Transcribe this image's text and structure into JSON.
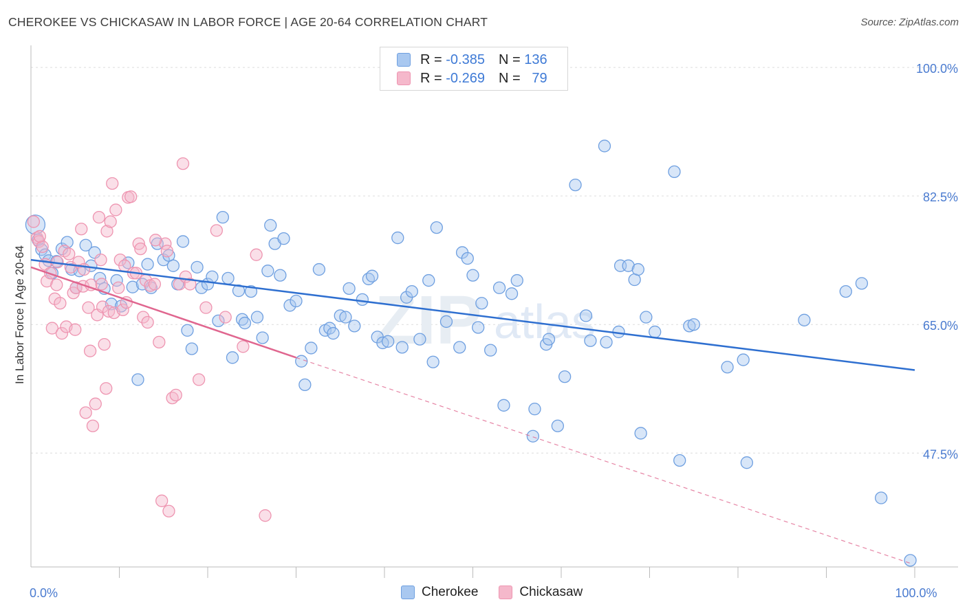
{
  "header": {
    "title": "CHEROKEE VS CHICKASAW IN LABOR FORCE | AGE 20-64 CORRELATION CHART",
    "source": "Source: ZipAtlas.com"
  },
  "legend": {
    "rows": [
      {
        "r_label": "R =",
        "r_value": "-0.385",
        "n_label": "N =",
        "n_value": "136",
        "color": "#a9c8f0"
      },
      {
        "r_label": "R =",
        "r_value": "-0.269",
        "n_label": "N =",
        "n_value": "79",
        "color": "#f5b8cb"
      }
    ]
  },
  "bottom_legend": {
    "items": [
      {
        "label": "Cherokee",
        "color": "#a9c8f0"
      },
      {
        "label": "Chickasaw",
        "color": "#f5b8cb"
      }
    ]
  },
  "watermark": {
    "zip": "ZIP",
    "atlas": "atlas"
  },
  "chart_data": {
    "type": "scatter",
    "ylabel": "In Labor Force | Age 20-64",
    "xlabel": "",
    "xlim": [
      0,
      100
    ],
    "ylim": [
      32,
      103
    ],
    "x_tick_labels": [
      "0.0%",
      "100.0%"
    ],
    "y_ticks": [
      47.5,
      65.0,
      82.5,
      100.0
    ],
    "y_tick_labels": [
      "47.5%",
      "65.0%",
      "82.5%",
      "100.0%"
    ],
    "grid": true,
    "series": [
      {
        "name": "Cherokee",
        "color": "#6e9fe0",
        "fill": "#a9c8f0",
        "trend": {
          "x0": 0,
          "y0": 73.8,
          "x1": 100,
          "y1": 58.8,
          "color": "#2e6fd0"
        },
        "points": [
          [
            0.5,
            78.6
          ],
          [
            0.8,
            76.5
          ],
          [
            1.2,
            75.2
          ],
          [
            1.6,
            74.5
          ],
          [
            2.0,
            73.7
          ],
          [
            2.4,
            72.0
          ],
          [
            2.9,
            73.6
          ],
          [
            3.5,
            75.3
          ],
          [
            4.1,
            76.2
          ],
          [
            4.6,
            72.5
          ],
          [
            5.1,
            70.0
          ],
          [
            5.5,
            72.3
          ],
          [
            6.2,
            75.8
          ],
          [
            6.8,
            73.0
          ],
          [
            7.2,
            74.8
          ],
          [
            7.8,
            71.3
          ],
          [
            8.3,
            69.9
          ],
          [
            9.1,
            67.8
          ],
          [
            9.7,
            71.0
          ],
          [
            10.2,
            67.5
          ],
          [
            11.0,
            73.4
          ],
          [
            11.5,
            70.1
          ],
          [
            12.1,
            57.5
          ],
          [
            12.6,
            70.5
          ],
          [
            13.2,
            73.2
          ],
          [
            13.6,
            70.0
          ],
          [
            14.3,
            76.0
          ],
          [
            15.0,
            73.8
          ],
          [
            15.6,
            74.4
          ],
          [
            16.1,
            73.0
          ],
          [
            16.6,
            70.5
          ],
          [
            17.2,
            76.3
          ],
          [
            17.7,
            64.2
          ],
          [
            18.2,
            61.7
          ],
          [
            18.8,
            72.8
          ],
          [
            19.3,
            70.0
          ],
          [
            20.0,
            70.5
          ],
          [
            20.5,
            71.5
          ],
          [
            21.2,
            65.5
          ],
          [
            21.7,
            79.6
          ],
          [
            22.3,
            71.3
          ],
          [
            22.8,
            60.5
          ],
          [
            23.5,
            69.6
          ],
          [
            23.9,
            65.7
          ],
          [
            24.2,
            65.2
          ],
          [
            24.9,
            69.5
          ],
          [
            25.6,
            66.0
          ],
          [
            26.2,
            63.2
          ],
          [
            26.8,
            72.3
          ],
          [
            27.1,
            78.5
          ],
          [
            27.6,
            76.0
          ],
          [
            28.2,
            71.7
          ],
          [
            28.6,
            76.7
          ],
          [
            29.3,
            67.6
          ],
          [
            30.0,
            68.2
          ],
          [
            30.6,
            60.0
          ],
          [
            31.0,
            56.8
          ],
          [
            31.7,
            61.8
          ],
          [
            32.6,
            72.5
          ],
          [
            33.3,
            64.2
          ],
          [
            33.8,
            64.5
          ],
          [
            34.2,
            63.8
          ],
          [
            35.0,
            66.2
          ],
          [
            35.6,
            66.0
          ],
          [
            36.0,
            69.9
          ],
          [
            36.6,
            64.8
          ],
          [
            37.5,
            68.4
          ],
          [
            38.2,
            71.2
          ],
          [
            38.6,
            71.6
          ],
          [
            39.2,
            63.3
          ],
          [
            39.8,
            62.5
          ],
          [
            40.4,
            62.7
          ],
          [
            41.5,
            76.8
          ],
          [
            42.0,
            61.9
          ],
          [
            42.5,
            68.7
          ],
          [
            43.1,
            69.5
          ],
          [
            44.0,
            63.0
          ],
          [
            45.0,
            71.0
          ],
          [
            45.5,
            59.9
          ],
          [
            45.9,
            78.2
          ],
          [
            47.0,
            65.4
          ],
          [
            48.5,
            61.9
          ],
          [
            48.8,
            74.8
          ],
          [
            49.4,
            74.0
          ],
          [
            50.0,
            71.7
          ],
          [
            50.6,
            64.6
          ],
          [
            51.0,
            67.9
          ],
          [
            52.0,
            61.5
          ],
          [
            53.0,
            70.0
          ],
          [
            53.5,
            54.0
          ],
          [
            54.4,
            69.2
          ],
          [
            55.0,
            71.0
          ],
          [
            56.8,
            49.8
          ],
          [
            57.0,
            53.5
          ],
          [
            58.3,
            62.3
          ],
          [
            58.6,
            63.0
          ],
          [
            59.6,
            51.2
          ],
          [
            60.4,
            57.9
          ],
          [
            61.6,
            84.0
          ],
          [
            62.8,
            66.2
          ],
          [
            63.3,
            62.8
          ],
          [
            64.9,
            89.3
          ],
          [
            65.1,
            62.6
          ],
          [
            66.5,
            64.0
          ],
          [
            66.7,
            73.0
          ],
          [
            67.6,
            73.0
          ],
          [
            68.3,
            71.1
          ],
          [
            68.7,
            72.5
          ],
          [
            69.0,
            50.2
          ],
          [
            69.6,
            66.0
          ],
          [
            70.6,
            64.0
          ],
          [
            72.8,
            85.8
          ],
          [
            73.4,
            46.5
          ],
          [
            74.5,
            64.8
          ],
          [
            75.0,
            65.0
          ],
          [
            78.8,
            59.2
          ],
          [
            80.6,
            60.2
          ],
          [
            81.0,
            46.2
          ],
          [
            87.5,
            65.6
          ],
          [
            92.2,
            69.5
          ],
          [
            94.0,
            70.6
          ],
          [
            96.2,
            41.4
          ],
          [
            99.5,
            32.9
          ]
        ]
      },
      {
        "name": "Chickasaw",
        "color": "#ee94b0",
        "fill": "#f5b8cb",
        "trend": {
          "x0": 0,
          "y0": 72.8,
          "x1": 30,
          "y1": 60.5,
          "color": "#e0668f",
          "dash_x1": 99.5,
          "dash_y1": 32.5
        },
        "points": [
          [
            0.3,
            79.0
          ],
          [
            0.7,
            76.8
          ],
          [
            0.9,
            76.3
          ],
          [
            1.3,
            75.6
          ],
          [
            1.6,
            73.2
          ],
          [
            1.8,
            70.9
          ],
          [
            2.2,
            72.0
          ],
          [
            2.4,
            64.5
          ],
          [
            2.7,
            68.5
          ],
          [
            2.9,
            70.4
          ],
          [
            3.3,
            67.9
          ],
          [
            3.5,
            63.8
          ],
          [
            3.8,
            75.0
          ],
          [
            4.0,
            64.7
          ],
          [
            4.3,
            74.6
          ],
          [
            4.5,
            72.8
          ],
          [
            4.8,
            69.3
          ],
          [
            5.1,
            70.0
          ],
          [
            5.0,
            64.3
          ],
          [
            5.4,
            73.5
          ],
          [
            5.7,
            78.0
          ],
          [
            5.9,
            70.2
          ],
          [
            6.2,
            53.0
          ],
          [
            6.5,
            67.3
          ],
          [
            6.7,
            61.4
          ],
          [
            6.8,
            70.4
          ],
          [
            7.0,
            51.2
          ],
          [
            7.3,
            54.2
          ],
          [
            7.5,
            66.3
          ],
          [
            7.7,
            79.6
          ],
          [
            7.9,
            73.8
          ],
          [
            8.1,
            67.4
          ],
          [
            8.3,
            62.3
          ],
          [
            8.5,
            56.3
          ],
          [
            8.6,
            77.7
          ],
          [
            8.8,
            66.8
          ],
          [
            9.0,
            79.0
          ],
          [
            9.2,
            84.2
          ],
          [
            9.4,
            66.6
          ],
          [
            9.6,
            80.6
          ],
          [
            9.9,
            70.0
          ],
          [
            10.1,
            73.8
          ],
          [
            10.4,
            67.0
          ],
          [
            10.6,
            73.0
          ],
          [
            11.0,
            82.3
          ],
          [
            11.3,
            82.4
          ],
          [
            11.6,
            72.0
          ],
          [
            11.9,
            72.0
          ],
          [
            12.2,
            76.0
          ],
          [
            12.4,
            75.3
          ],
          [
            12.7,
            66.0
          ],
          [
            13.0,
            71.0
          ],
          [
            13.2,
            65.3
          ],
          [
            13.5,
            70.3
          ],
          [
            14.0,
            70.5
          ],
          [
            14.5,
            62.6
          ],
          [
            14.8,
            41.0
          ],
          [
            15.2,
            76.0
          ],
          [
            15.4,
            75.0
          ],
          [
            15.6,
            39.6
          ],
          [
            16.0,
            55.0
          ],
          [
            16.4,
            55.4
          ],
          [
            16.8,
            70.5
          ],
          [
            17.2,
            86.9
          ],
          [
            17.5,
            71.5
          ],
          [
            18.0,
            70.5
          ],
          [
            19.0,
            57.5
          ],
          [
            19.8,
            67.3
          ],
          [
            21.0,
            77.8
          ],
          [
            22.0,
            66.0
          ],
          [
            24.0,
            62.0
          ],
          [
            25.5,
            74.5
          ],
          [
            26.5,
            39.0
          ],
          [
            1.0,
            77.0
          ],
          [
            3.0,
            73.5
          ],
          [
            6.0,
            72.5
          ],
          [
            8.0,
            70.5
          ],
          [
            10.8,
            68.0
          ],
          [
            14.1,
            76.5
          ]
        ]
      }
    ]
  }
}
